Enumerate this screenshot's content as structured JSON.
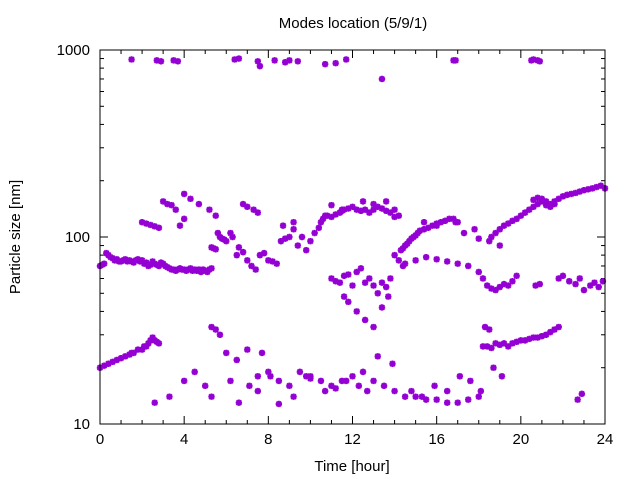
{
  "chart_data": {
    "type": "scatter",
    "title": "Modes location (5/9/1)",
    "xlabel": "Time [hour]",
    "ylabel": "Particle size [nm]",
    "xlim": [
      0,
      24
    ],
    "ylim": [
      10,
      1000
    ],
    "yscale": "log",
    "xticks": [
      0,
      4,
      8,
      12,
      16,
      20,
      24
    ],
    "xtick_labels": [
      "0",
      "4",
      "8",
      "12",
      "16",
      "20",
      "24"
    ],
    "yticks": [
      10,
      100,
      1000
    ],
    "ytick_labels": [
      "10",
      "100",
      "1000"
    ],
    "grid": false,
    "legend": "none",
    "marker_color": "#9400d3",
    "marker": "star",
    "series": [
      {
        "x": [
          1.5,
          2.7,
          2.9,
          3.5,
          3.7,
          6.4,
          6.6,
          7.5,
          7.6,
          8.3,
          8.8,
          9.0,
          9.4,
          10.7,
          11.2,
          11.7,
          13.4,
          16.8,
          16.9,
          20.5,
          20.6,
          20.8,
          20.9
        ],
        "y": [
          890,
          880,
          870,
          880,
          870,
          890,
          900,
          870,
          820,
          880,
          860,
          880,
          870,
          840,
          850,
          890,
          700,
          880,
          880,
          880,
          890,
          880,
          870
        ]
      },
      {
        "x": [
          0.0,
          0.1,
          0.2,
          0.3,
          0.4,
          0.5,
          0.6,
          0.7,
          0.8,
          0.9,
          1.0,
          1.1,
          1.2,
          1.3,
          1.4,
          1.5,
          1.6,
          1.7,
          1.8,
          1.9,
          2.0,
          2.1,
          2.2,
          2.3,
          2.4,
          2.5,
          2.6,
          2.7,
          2.8,
          2.9,
          3.0,
          3.1,
          3.2,
          3.3,
          3.4,
          3.5,
          3.6,
          3.7,
          3.8,
          3.9,
          4.0,
          4.1,
          4.2,
          4.3,
          4.4,
          4.5,
          4.6,
          4.7,
          4.8,
          4.9,
          5.0,
          5.1,
          5.2,
          5.3
        ],
        "y": [
          70,
          71,
          72,
          82,
          80,
          78,
          77,
          75,
          76,
          74,
          74,
          75,
          76,
          74,
          75,
          74,
          73,
          75,
          76,
          74,
          75,
          72,
          73,
          70,
          71,
          74,
          72,
          71,
          70,
          73,
          72,
          70,
          69,
          68,
          67,
          67,
          66,
          67,
          68,
          67,
          67,
          66,
          67,
          68,
          66,
          67,
          66,
          67,
          65,
          67,
          66,
          65,
          67,
          68
        ]
      },
      {
        "x": [
          0.0,
          0.2,
          0.4,
          0.6,
          0.8,
          1.0,
          1.2,
          1.4,
          1.5,
          1.6,
          1.8,
          2.0,
          2.1,
          2.2,
          2.3,
          2.4,
          2.5,
          2.6,
          2.7,
          2.8
        ],
        "y": [
          20,
          20.5,
          21,
          21.5,
          22,
          22.5,
          23,
          23.5,
          24,
          24,
          25,
          25,
          26,
          26,
          27,
          28,
          29,
          28,
          27.5,
          27
        ]
      },
      {
        "x": [
          5.3,
          5.4,
          5.5,
          5.6,
          5.7,
          5.8,
          5.9,
          6.0,
          6.2,
          6.3,
          6.5,
          6.6,
          6.8,
          7.0,
          7.2,
          7.4,
          7.6,
          7.8,
          8.0,
          8.2,
          8.4,
          8.6,
          8.8,
          9.0,
          9.2,
          9.4,
          9.6,
          9.8,
          10.0,
          10.2,
          10.4
        ],
        "y": [
          88,
          87,
          86,
          105,
          100,
          98,
          97,
          95,
          105,
          100,
          80,
          88,
          83,
          75,
          70,
          67,
          80,
          82,
          75,
          74,
          72,
          95,
          98,
          100,
          110,
          90,
          100,
          85,
          95,
          105,
          112
        ]
      },
      {
        "x": [
          10.5,
          10.6,
          10.8,
          11.0,
          11.2,
          11.4,
          11.5,
          11.6,
          11.8,
          12.0,
          12.2,
          12.4,
          12.6,
          12.8,
          13.0,
          13.2,
          13.4,
          13.6,
          13.8,
          14.0,
          14.2
        ],
        "y": [
          120,
          125,
          130,
          128,
          132,
          135,
          138,
          140,
          142,
          145,
          140,
          138,
          140,
          135,
          140,
          145,
          142,
          138,
          135,
          128,
          130
        ]
      },
      {
        "x": [
          14.3,
          14.4,
          14.5,
          14.6,
          14.7,
          14.8,
          14.9,
          15.0,
          15.1,
          15.2,
          15.4,
          15.6,
          15.8,
          16.0,
          16.2,
          16.4,
          16.6,
          16.8,
          17.0
        ],
        "y": [
          85,
          87,
          90,
          92,
          95,
          98,
          100,
          102,
          105,
          108,
          110,
          112,
          115,
          118,
          120,
          122,
          125,
          125,
          120
        ]
      },
      {
        "x": [
          4.0,
          4.3,
          4.7,
          5.2,
          5.5,
          6.8,
          7.0,
          7.3,
          7.5,
          8.7,
          9.2,
          10.7,
          11.0,
          11.5,
          12.5,
          13.0,
          13.6,
          14.0,
          15.4,
          16.0,
          16.9,
          17.3,
          17.8,
          18.0,
          18.5,
          19.0
        ],
        "y": [
          170,
          160,
          150,
          140,
          130,
          150,
          145,
          140,
          135,
          115,
          120,
          130,
          148,
          140,
          155,
          150,
          155,
          140,
          120,
          115,
          120,
          105,
          110,
          98,
          95,
          90
        ]
      },
      {
        "x": [
          2.0,
          2.2,
          2.4,
          2.6,
          2.8,
          3.0,
          3.2,
          3.4,
          3.6,
          3.8,
          4.0
        ],
        "y": [
          120,
          118,
          116,
          114,
          112,
          155,
          150,
          148,
          140,
          115,
          125
        ]
      },
      {
        "x": [
          11.0,
          11.2,
          11.4,
          11.6,
          11.8,
          12.0,
          12.2,
          12.4,
          12.6,
          12.8,
          13.0,
          13.2,
          13.4,
          13.6,
          13.8,
          14.0,
          14.2,
          14.4
        ],
        "y": [
          60,
          58,
          57,
          62,
          63,
          55,
          65,
          68,
          57,
          60,
          55,
          50,
          57,
          54,
          60,
          80,
          75,
          70
        ]
      },
      {
        "x": [
          11.6,
          11.8,
          12.2,
          12.6,
          13.0,
          13.4,
          13.7
        ],
        "y": [
          48,
          45,
          40,
          36,
          33,
          42,
          48
        ]
      },
      {
        "x": [
          14.5,
          15.0,
          15.5,
          16.0,
          16.5,
          17.0,
          17.5,
          18.0,
          18.2,
          18.4,
          18.6,
          18.8,
          19.0,
          19.2,
          19.4,
          19.6,
          19.8
        ],
        "y": [
          72,
          75,
          78,
          76,
          74,
          72,
          70,
          65,
          60,
          55,
          53,
          52,
          54,
          56,
          55,
          58,
          62
        ]
      },
      {
        "x": [
          18.6,
          18.8,
          19.0,
          19.2,
          19.4,
          19.6,
          19.8,
          20.0,
          20.2,
          20.4,
          20.6,
          20.8,
          21.0,
          21.2,
          21.4,
          21.6
        ],
        "y": [
          100,
          105,
          110,
          115,
          118,
          122,
          125,
          130,
          135,
          140,
          145,
          150,
          155,
          148,
          145,
          150
        ]
      },
      {
        "x": [
          20.6,
          20.8,
          21.0,
          21.2,
          21.4,
          21.6,
          21.8,
          22.0,
          22.2,
          22.4,
          22.6,
          22.8,
          23.0,
          23.2,
          23.4,
          23.6,
          23.8,
          24.0
        ],
        "y": [
          158,
          162,
          160,
          155,
          150,
          155,
          160,
          165,
          168,
          170,
          172,
          175,
          178,
          180,
          182,
          185,
          188,
          182
        ]
      },
      {
        "x": [
          20.7,
          20.9,
          21.8,
          22.0,
          22.3,
          22.6,
          22.8,
          23.0,
          23.3,
          23.5,
          23.7,
          23.9
        ],
        "y": [
          55,
          56,
          60,
          62,
          58,
          56,
          60,
          52,
          55,
          57,
          54,
          58
        ]
      },
      {
        "x": [
          18.2,
          18.4,
          18.6,
          18.8,
          19.0,
          19.2,
          19.4,
          19.6,
          19.8,
          20.0,
          20.2,
          20.4,
          20.6,
          20.8,
          21.0,
          21.2,
          21.4,
          21.6,
          21.8
        ],
        "y": [
          26,
          26,
          25.5,
          27,
          26.5,
          27,
          26,
          27,
          27.5,
          28,
          28,
          28.5,
          29,
          29,
          29.5,
          30,
          31,
          32,
          33
        ]
      },
      {
        "x": [
          18.3,
          18.5
        ],
        "y": [
          33,
          32
        ]
      },
      {
        "x": [
          5.3,
          5.5,
          5.7,
          6.0,
          6.5,
          7.0,
          7.5,
          8.0,
          8.5,
          9.0,
          9.5,
          10.0,
          10.5,
          11.0,
          11.5,
          12.0,
          12.5,
          13.0,
          13.5,
          14.0,
          14.5,
          15.0,
          15.5,
          16.0,
          16.5,
          17.0,
          17.5,
          18.0
        ],
        "y": [
          33,
          32,
          30,
          24,
          22,
          25,
          18,
          19,
          17,
          16,
          19,
          18,
          17,
          16,
          17,
          18,
          19,
          17,
          16,
          15,
          14,
          14,
          13.5,
          13.5,
          13,
          13,
          13.5,
          14
        ]
      },
      {
        "x": [
          2.6,
          3.3,
          4.0,
          4.5,
          5.0,
          5.3,
          6.2,
          6.6,
          7.1,
          7.5,
          7.7,
          8.1,
          8.5,
          9.2,
          9.8,
          10.0,
          10.7,
          11.2,
          11.7,
          12.3,
          12.7,
          13.2,
          13.9,
          14.8,
          15.3,
          15.9,
          16.5,
          17.1,
          17.6,
          18.1,
          18.7,
          19.1
        ],
        "y": [
          13,
          14,
          17,
          19,
          16,
          14,
          17,
          13,
          16,
          15,
          24,
          18,
          12.8,
          14,
          18,
          17.5,
          15,
          15.5,
          17,
          16,
          15,
          23,
          21,
          15,
          14,
          16,
          15,
          18,
          17,
          15,
          20,
          18
        ]
      },
      {
        "x": [
          22.7,
          22.9
        ],
        "y": [
          13.5,
          14.5
        ]
      }
    ]
  }
}
